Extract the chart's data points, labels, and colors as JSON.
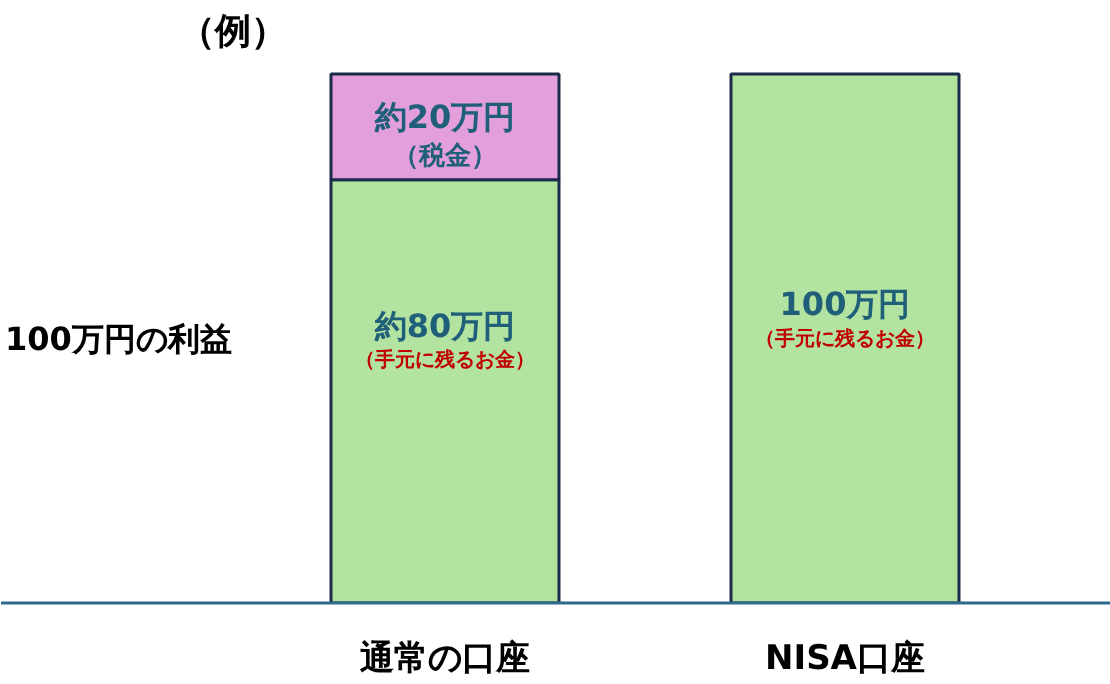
{
  "chart_data": {
    "type": "bar",
    "stacked": true,
    "title": "（例）",
    "categories": [
      "通常の口座",
      "NISA口座"
    ],
    "series": [
      {
        "color": "#b3e3a0",
        "values": [
          80,
          100
        ],
        "value_labels": [
          "約80万円",
          "100万円"
        ]
      },
      {
        "color": "#e39fdb",
        "values": [
          20,
          null
        ],
        "value_labels": [
          "約20万円",
          null
        ]
      }
    ],
    "annotations": [
      "（手元に残るお金）",
      "（手元に残るお金）",
      "（税金）",
      "100万円の利益"
    ]
  }
}
